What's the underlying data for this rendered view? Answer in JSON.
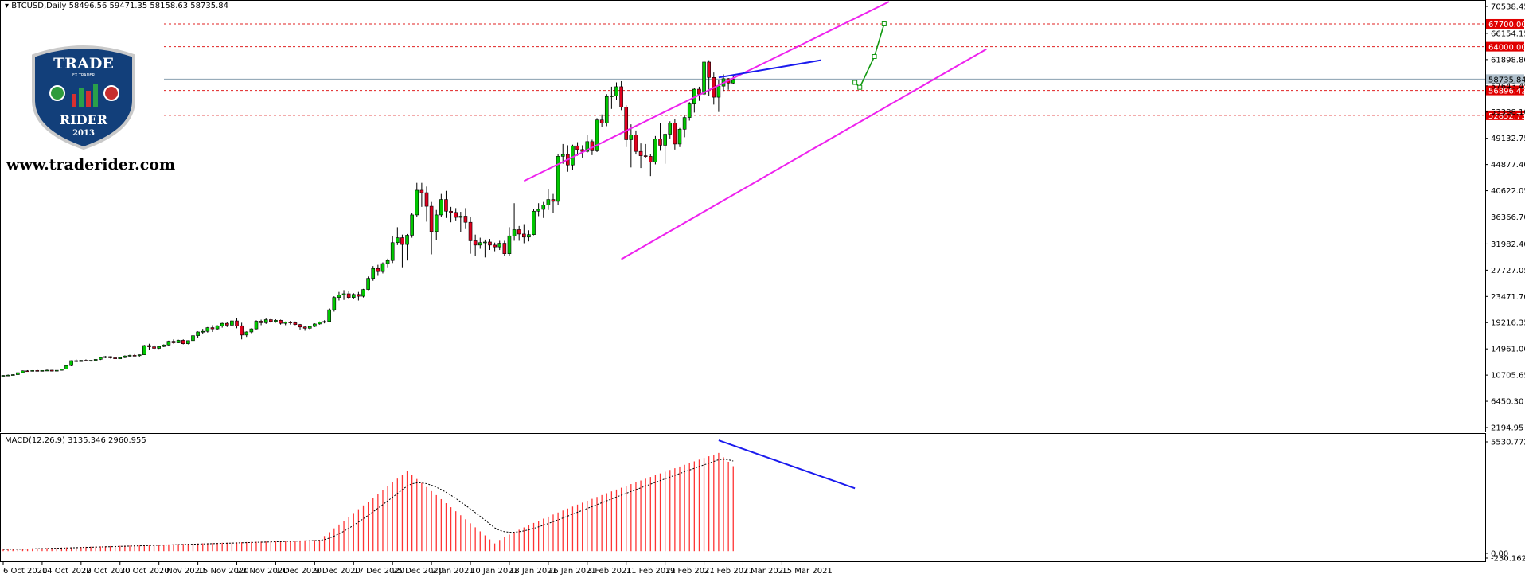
{
  "header": {
    "symbol": "BTCUSD,Daily",
    "ohlc": "58496.56 59471.35 58158.63 58735.84",
    "macd_label": "MACD(12,26,9) 3135.346 2960.955"
  },
  "branding": {
    "logo_top": "TRADE",
    "logo_sub": "FX TRADER",
    "logo_bottom": "RIDER",
    "logo_year": "2013",
    "website": "www.traderider.com"
  },
  "colors": {
    "bull": "#00c800",
    "bear": "#e0001e",
    "channel": "#ee22ee",
    "divergence": "#1a1aee",
    "level_line": "#e02020",
    "projection": "#119911",
    "macd_hist": "#ff3333",
    "current_price": "#8aa0b0",
    "logo_blue": "#123f7a"
  },
  "chart_data": [
    {
      "type": "candlestick",
      "symbol": "BTCUSD",
      "timeframe": "Daily",
      "x_ticks": [
        "6 Oct 2020",
        "14 Oct 2020",
        "22 Oct 2020",
        "30 Oct 2020",
        "7 Nov 2020",
        "15 Nov 2020",
        "23 Nov 2020",
        "1 Dec 2020",
        "9 Dec 2020",
        "17 Dec 2020",
        "25 Dec 2020",
        "2 Jan 2021",
        "10 Jan 2021",
        "18 Jan 2021",
        "26 Jan 2021",
        "3 Feb 2021",
        "11 Feb 2021",
        "19 Feb 2021",
        "27 Feb 2021",
        "7 Mar 2021",
        "15 Mar 2021"
      ],
      "y_ticks": [
        "70538.45",
        "66154.15",
        "61898.80",
        "57643.45",
        "53388.10",
        "49132.75",
        "44877.40",
        "40622.05",
        "36366.70",
        "31982.40",
        "27727.05",
        "23471.70",
        "19216.35",
        "14961.00",
        "10705.65",
        "6450.30",
        "2194.95"
      ],
      "ylim": [
        2194.95,
        70538.45
      ],
      "price_labels": [
        "67700.00",
        "64000.00",
        "58735.84",
        "56896.42",
        "52852.73"
      ],
      "levels": [
        67700.0,
        64000.0,
        56896.42,
        52852.73
      ],
      "current_price": 58735.84,
      "trendlines": [
        {
          "kind": "channel-upper",
          "from": {
            "day": 107,
            "price": 42200
          },
          "to": {
            "day": 182,
            "price": 71300
          }
        },
        {
          "kind": "channel-lower",
          "from": {
            "day": 127,
            "price": 29500
          },
          "to": {
            "day": 202,
            "price": 63600
          }
        },
        {
          "kind": "divergence-price",
          "from": {
            "day": 147,
            "price": 59000
          },
          "to": {
            "day": 168,
            "price": 61800
          }
        },
        {
          "kind": "projection",
          "points": [
            {
              "day": 175,
              "price": 58200
            },
            {
              "day": 176,
              "price": 57400
            },
            {
              "day": 179,
              "price": 62400
            },
            {
              "day": 181,
              "price": 67700
            }
          ]
        }
      ],
      "candles": [
        [
          10600,
          10700,
          10500,
          10650
        ],
        [
          10650,
          10800,
          10550,
          10700
        ],
        [
          10700,
          10850,
          10650,
          10780
        ],
        [
          10780,
          11150,
          10750,
          11100
        ],
        [
          11100,
          11450,
          11000,
          11400
        ],
        [
          11400,
          11500,
          11250,
          11350
        ],
        [
          11350,
          11500,
          11300,
          11450
        ],
        [
          11450,
          11550,
          11350,
          11400
        ],
        [
          11400,
          11500,
          11300,
          11450
        ],
        [
          11450,
          11600,
          11380,
          11500
        ],
        [
          11500,
          11550,
          11300,
          11350
        ],
        [
          11350,
          11500,
          11300,
          11480
        ],
        [
          11480,
          11750,
          11450,
          11700
        ],
        [
          11700,
          12300,
          11650,
          12250
        ],
        [
          12250,
          13100,
          12150,
          13050
        ],
        [
          13050,
          13250,
          12800,
          12900
        ],
        [
          12900,
          13150,
          12850,
          13100
        ],
        [
          13100,
          13250,
          12950,
          13000
        ],
        [
          13000,
          13150,
          12900,
          13100
        ],
        [
          13100,
          13300,
          13000,
          13250
        ],
        [
          13250,
          13650,
          13150,
          13550
        ],
        [
          13550,
          13800,
          13450,
          13700
        ],
        [
          13700,
          13750,
          13400,
          13500
        ],
        [
          13500,
          13650,
          13300,
          13350
        ],
        [
          13350,
          13600,
          13300,
          13550
        ],
        [
          13550,
          13900,
          13450,
          13800
        ],
        [
          13800,
          14000,
          13700,
          13900
        ],
        [
          13900,
          14100,
          13750,
          13850
        ],
        [
          13850,
          14050,
          13650,
          14000
        ],
        [
          14000,
          15600,
          13950,
          15500
        ],
        [
          15500,
          15800,
          14800,
          15300
        ],
        [
          15300,
          15600,
          14900,
          15050
        ],
        [
          15050,
          15400,
          14950,
          15350
        ],
        [
          15350,
          15700,
          15250,
          15600
        ],
        [
          15600,
          16300,
          15400,
          16200
        ],
        [
          16200,
          16500,
          15800,
          15950
        ],
        [
          15950,
          16450,
          15900,
          16350
        ],
        [
          16350,
          16500,
          15700,
          15800
        ],
        [
          15800,
          16350,
          15700,
          16300
        ],
        [
          16300,
          17200,
          16200,
          17100
        ],
        [
          17100,
          17800,
          16800,
          17700
        ],
        [
          17700,
          18200,
          17400,
          17800
        ],
        [
          17800,
          18500,
          17600,
          18400
        ],
        [
          18400,
          18800,
          17700,
          18200
        ],
        [
          18200,
          18800,
          18000,
          18700
        ],
        [
          18700,
          19200,
          18400,
          19100
        ],
        [
          19100,
          19300,
          18500,
          18800
        ],
        [
          18800,
          19600,
          18700,
          19500
        ],
        [
          19500,
          19900,
          18300,
          18700
        ],
        [
          18700,
          19200,
          16500,
          17200
        ],
        [
          17200,
          17800,
          16900,
          17700
        ],
        [
          17700,
          18300,
          17500,
          18200
        ],
        [
          18200,
          19600,
          18100,
          19450
        ],
        [
          19450,
          19700,
          18800,
          19200
        ],
        [
          19200,
          19900,
          19000,
          19700
        ],
        [
          19700,
          19850,
          19200,
          19400
        ],
        [
          19400,
          19750,
          19200,
          19600
        ],
        [
          19600,
          19700,
          18900,
          19100
        ],
        [
          19100,
          19400,
          18800,
          19300
        ],
        [
          19300,
          19500,
          18900,
          19200
        ],
        [
          19200,
          19400,
          18800,
          18900
        ],
        [
          18900,
          19000,
          18100,
          18500
        ],
        [
          18500,
          18700,
          17900,
          18300
        ],
        [
          18300,
          18700,
          18100,
          18600
        ],
        [
          18600,
          19100,
          18500,
          19000
        ],
        [
          19000,
          19400,
          18900,
          19300
        ],
        [
          19300,
          19600,
          19100,
          19400
        ],
        [
          19400,
          21500,
          19300,
          21300
        ],
        [
          21300,
          23500,
          21000,
          23300
        ],
        [
          23300,
          24200,
          22800,
          23700
        ],
        [
          23700,
          24500,
          22900,
          23900
        ],
        [
          23900,
          24300,
          23000,
          23300
        ],
        [
          23300,
          24000,
          23100,
          23800
        ],
        [
          23800,
          24200,
          22800,
          23500
        ],
        [
          23500,
          24700,
          23300,
          24600
        ],
        [
          24600,
          26700,
          24500,
          26400
        ],
        [
          26400,
          28400,
          26000,
          28000
        ],
        [
          28000,
          28600,
          26800,
          27500
        ],
        [
          27500,
          29000,
          27200,
          28800
        ],
        [
          28800,
          29600,
          28200,
          29300
        ],
        [
          29300,
          33200,
          28900,
          32200
        ],
        [
          32200,
          34700,
          31800,
          33000
        ],
        [
          33000,
          33500,
          28200,
          31900
        ],
        [
          31900,
          33600,
          29300,
          33400
        ],
        [
          33400,
          37000,
          33000,
          36700
        ],
        [
          36700,
          41900,
          36300,
          40700
        ],
        [
          40700,
          41900,
          38000,
          40300
        ],
        [
          40300,
          41300,
          35600,
          38100
        ],
        [
          38100,
          38800,
          30300,
          34000
        ],
        [
          34000,
          37500,
          32600,
          36700
        ],
        [
          36700,
          40100,
          36300,
          39200
        ],
        [
          39200,
          40600,
          36200,
          37300
        ],
        [
          37300,
          38000,
          35500,
          37100
        ],
        [
          37100,
          37800,
          35800,
          36300
        ],
        [
          36300,
          37200,
          33900,
          36500
        ],
        [
          36500,
          37800,
          34400,
          35500
        ],
        [
          35500,
          36300,
          30400,
          32500
        ],
        [
          32500,
          33500,
          30100,
          31800
        ],
        [
          31800,
          33000,
          31200,
          32200
        ],
        [
          32200,
          32700,
          29800,
          32300
        ],
        [
          32300,
          32800,
          31000,
          31800
        ],
        [
          31800,
          32200,
          30800,
          31500
        ],
        [
          31500,
          32500,
          31000,
          32100
        ],
        [
          32100,
          32500,
          30000,
          30400
        ],
        [
          30400,
          34700,
          30100,
          33300
        ],
        [
          33300,
          38600,
          32500,
          34300
        ],
        [
          34300,
          34900,
          32500,
          33600
        ],
        [
          33600,
          35200,
          32100,
          33100
        ],
        [
          33100,
          34200,
          32400,
          33500
        ],
        [
          33500,
          37600,
          33400,
          37300
        ],
        [
          37300,
          38600,
          36500,
          37600
        ],
        [
          37600,
          38800,
          36200,
          38300
        ],
        [
          38300,
          40900,
          37500,
          39200
        ],
        [
          39200,
          40100,
          37000,
          38900
        ],
        [
          38900,
          46600,
          38300,
          46200
        ],
        [
          46200,
          48200,
          45000,
          46500
        ],
        [
          46500,
          48000,
          43700,
          44800
        ],
        [
          44800,
          48100,
          44000,
          47900
        ],
        [
          47900,
          48500,
          46300,
          47300
        ],
        [
          47300,
          48000,
          46000,
          47000
        ],
        [
          47000,
          49700,
          46800,
          48600
        ],
        [
          48600,
          48900,
          46400,
          47100
        ],
        [
          47100,
          52400,
          46900,
          52100
        ],
        [
          52100,
          53000,
          50900,
          51600
        ],
        [
          51600,
          56300,
          51100,
          55900
        ],
        [
          55900,
          57500,
          53900,
          56000
        ],
        [
          56000,
          58200,
          55400,
          57500
        ],
        [
          57500,
          58400,
          53700,
          54200
        ],
        [
          54200,
          54500,
          47700,
          48900
        ],
        [
          48900,
          51400,
          44400,
          49700
        ],
        [
          49700,
          50400,
          46500,
          47000
        ],
        [
          47000,
          48300,
          44300,
          46300
        ],
        [
          46300,
          48200,
          46000,
          46200
        ],
        [
          46200,
          46600,
          43000,
          45300
        ],
        [
          45300,
          49500,
          44900,
          49000
        ],
        [
          49000,
          51600,
          47100,
          48000
        ],
        [
          48000,
          49900,
          45000,
          49800
        ],
        [
          49800,
          51900,
          49100,
          51600
        ],
        [
          51600,
          52300,
          47300,
          48200
        ],
        [
          48200,
          50800,
          47700,
          50600
        ],
        [
          50600,
          52800,
          49300,
          52500
        ],
        [
          52500,
          55000,
          52000,
          54700
        ],
        [
          54700,
          57300,
          53300,
          57100
        ],
        [
          57100,
          57500,
          55200,
          56300
        ],
        [
          56300,
          61800,
          56000,
          61500
        ],
        [
          61500,
          61800,
          56000,
          59000
        ],
        [
          59000,
          59800,
          54600,
          55800
        ],
        [
          55800,
          58600,
          53400,
          57600
        ],
        [
          57600,
          59500,
          56800,
          58800
        ],
        [
          58800,
          58900,
          57000,
          58100
        ],
        [
          58100,
          59500,
          58000,
          58700
        ]
      ]
    },
    {
      "type": "macd",
      "params": "MACD(12,26,9)",
      "y_ticks": [
        "5530.772",
        "0.00",
        "-230.162"
      ],
      "ylim": [
        -230.162,
        5530.772
      ],
      "histogram_peaks": [
        {
          "day": 83,
          "value": 4000
        },
        {
          "day": 147,
          "value": 4900
        },
        {
          "day": 175,
          "value": 3140
        }
      ],
      "divergence_line": {
        "from": {
          "day": 147,
          "value": 5530
        },
        "to": {
          "day": 175,
          "value": 3135
        }
      }
    }
  ]
}
